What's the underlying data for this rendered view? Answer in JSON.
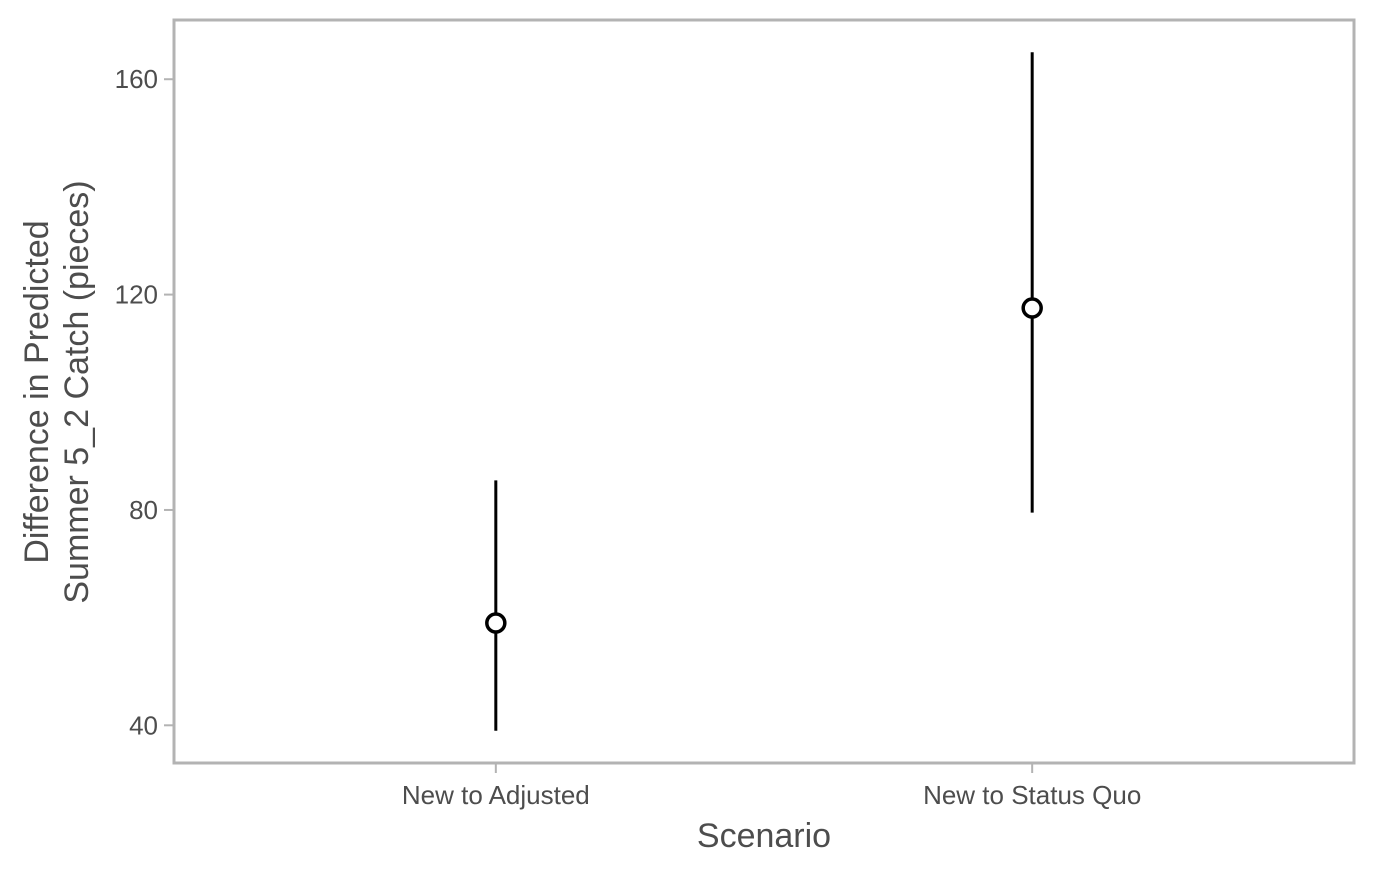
{
  "chart_data": {
    "type": "scatter",
    "subtype": "point-range",
    "title": "",
    "xlabel": "Scenario",
    "ylabel_lines": [
      "Difference in Predicted",
      "Summer 5_2 Catch (pieces)"
    ],
    "categories": [
      "New to Adjusted",
      "New to Status Quo"
    ],
    "estimates": [
      59,
      117.5
    ],
    "lower": [
      39,
      79.5
    ],
    "upper": [
      85.5,
      165
    ],
    "yticks": [
      40,
      80,
      120,
      160
    ],
    "ylim": [
      33,
      171
    ],
    "grid": false,
    "legend": "none",
    "colors": {
      "panel_border": "#b3b3b3",
      "tick": "#b3b3b3",
      "text": "#4d4d4d",
      "marks": "#000000",
      "point_fill": "#ffffff"
    }
  }
}
